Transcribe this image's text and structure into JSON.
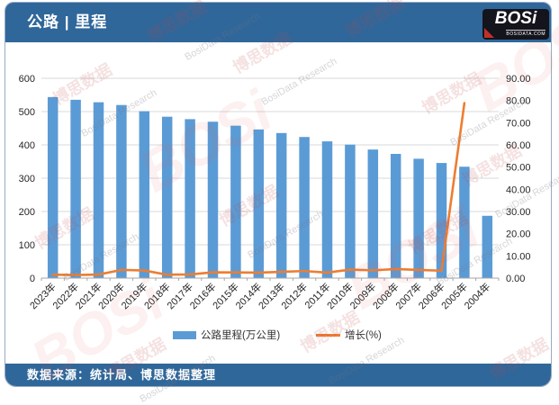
{
  "header": {
    "title": "公路 | 里程",
    "logo": {
      "name": "BOSi",
      "domain": "BOSIDATA.COM"
    }
  },
  "footer": {
    "source_text": "数据来源：统计局、博思数据整理"
  },
  "watermark": {
    "cn": "博思数据",
    "en": "BosiData Research",
    "logo": "BOSi"
  },
  "colors": {
    "header_blue": "#30679A",
    "bar_blue": "#5B9BD5",
    "line_orange": "#ED7D31",
    "grid": "#D9D9D9",
    "axis": "#A6A6A6",
    "tick_text": "#262626"
  },
  "chart_data": {
    "type": "bar",
    "categories": [
      "2023年",
      "2022年",
      "2021年",
      "2020年",
      "2019年",
      "2018年",
      "2017年",
      "2016年",
      "2015年",
      "2014年",
      "2013年",
      "2012年",
      "2011年",
      "2010年",
      "2009年",
      "2008年",
      "2007年",
      "2006年",
      "2005年",
      "2004年"
    ],
    "series": [
      {
        "name": "公路里程(万公里)",
        "type": "bar",
        "axis": "left",
        "values": [
          543.68,
          535.48,
          528.07,
          519.81,
          501.25,
          484.65,
          477.35,
          469.63,
          457.73,
          446.39,
          435.62,
          423.75,
          410.64,
          400.82,
          386.08,
          373.02,
          358.37,
          345.7,
          334.52,
          187.07
        ]
      },
      {
        "name": "增长(%)",
        "type": "line",
        "axis": "right",
        "values": [
          1.53,
          1.4,
          1.59,
          3.7,
          3.43,
          1.53,
          1.64,
          2.6,
          2.54,
          2.47,
          2.8,
          3.19,
          2.45,
          3.82,
          3.5,
          4.09,
          3.66,
          3.34,
          78.83,
          null
        ]
      }
    ],
    "left_axis": {
      "min": 0,
      "max": 600,
      "step": 100,
      "ticks": [
        "0",
        "100",
        "200",
        "300",
        "400",
        "500",
        "600"
      ]
    },
    "right_axis": {
      "min": 0,
      "max": 90,
      "step": 10,
      "ticks": [
        "0.00",
        "10.00",
        "20.00",
        "30.00",
        "40.00",
        "50.00",
        "60.00",
        "70.00",
        "80.00",
        "90.00"
      ]
    },
    "legend": [
      "公路里程(万公里)",
      "增长(%)"
    ],
    "legend_position": "bottom",
    "grid": "horizontal",
    "title": "公路 | 里程"
  }
}
